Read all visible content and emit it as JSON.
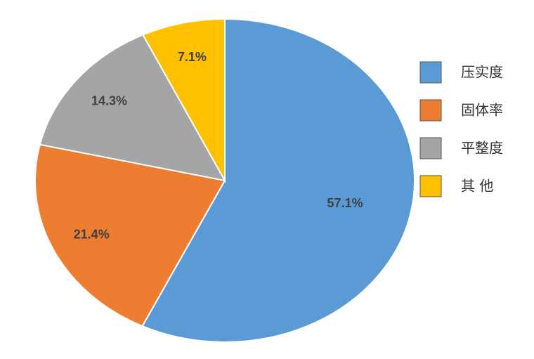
{
  "chart_data": {
    "type": "pie",
    "categories": [
      "压实度",
      "固体率",
      "平整度",
      "其 他"
    ],
    "values": [
      57.1,
      21.4,
      14.3,
      7.1
    ],
    "value_labels": [
      "57.1%",
      "21.4%",
      "14.3%",
      "7.1%"
    ],
    "colors": [
      "#5b9bd5",
      "#ed7d31",
      "#a5a5a5",
      "#ffc000"
    ],
    "legend": "right"
  }
}
